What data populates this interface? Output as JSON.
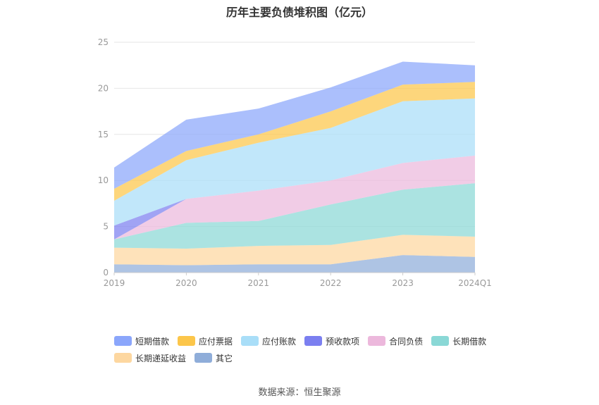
{
  "chart_data": {
    "type": "area",
    "stacked": true,
    "title": "历年主要负债堆积图（亿元）",
    "categories": [
      "2019",
      "2020",
      "2021",
      "2022",
      "2023",
      "2024Q1"
    ],
    "ylim": [
      0,
      25
    ],
    "yticks": [
      "0",
      "5",
      "10",
      "15",
      "20",
      "25"
    ],
    "grid": true,
    "legend_position": "bottom",
    "series": [
      {
        "name": "其它",
        "color": "#8fadd9",
        "values": [
          0.9,
          0.8,
          0.9,
          0.9,
          1.9,
          1.7
        ]
      },
      {
        "name": "长期递延收益",
        "color": "#fdd7a0",
        "values": [
          1.8,
          1.8,
          2.0,
          2.1,
          2.2,
          2.2
        ]
      },
      {
        "name": "长期借款",
        "color": "#8ad8d6",
        "values": [
          0.9,
          2.8,
          2.7,
          4.4,
          4.9,
          5.8
        ]
      },
      {
        "name": "合同负债",
        "color": "#ecb8dc",
        "values": [
          0.0,
          2.6,
          3.3,
          2.6,
          2.9,
          3.0
        ]
      },
      {
        "name": "预收款项",
        "color": "#7b7ff0",
        "values": [
          1.5,
          0.0,
          0.0,
          0.0,
          0.0,
          0.0
        ]
      },
      {
        "name": "应付账款",
        "color": "#a9def8",
        "values": [
          2.7,
          4.2,
          5.2,
          5.7,
          6.7,
          6.2
        ]
      },
      {
        "name": "应付票据",
        "color": "#fcc64a",
        "values": [
          1.3,
          1.0,
          0.9,
          1.8,
          1.8,
          1.8
        ]
      },
      {
        "name": "短期借款",
        "color": "#8ba6fb",
        "values": [
          2.3,
          3.4,
          2.8,
          2.6,
          2.5,
          1.8
        ]
      }
    ],
    "legend_order": [
      "短期借款",
      "应付票据",
      "应付账款",
      "预收款项",
      "合同负债",
      "长期借款",
      "长期递延收益",
      "其它"
    ]
  },
  "source": "数据来源：恒生聚源"
}
